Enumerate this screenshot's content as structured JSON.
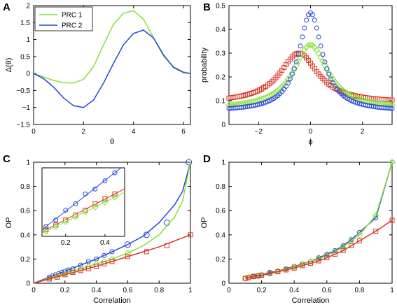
{
  "chart_data": [
    {
      "panel": "A",
      "type": "line",
      "xlabel": "θ",
      "ylabel": "Δ(θ)",
      "xlim": [
        0,
        6.28
      ],
      "ylim": [
        -1.5,
        2
      ],
      "xticks": [
        0,
        2,
        4,
        6
      ],
      "yticks": [
        -1.5,
        -1,
        -0.5,
        0,
        0.5,
        1,
        1.5,
        2
      ],
      "legend": "top-left",
      "series": [
        {
          "name": "PRC 1",
          "color": "#88e03a",
          "x": [
            0,
            0.4,
            0.8,
            1.2,
            1.6,
            2.0,
            2.4,
            2.8,
            3.2,
            3.6,
            4.0,
            4.4,
            4.8,
            5.2,
            5.6,
            6.0,
            6.28
          ],
          "y": [
            0,
            -0.1,
            -0.2,
            -0.27,
            -0.28,
            -0.17,
            0.2,
            0.85,
            1.45,
            1.78,
            1.85,
            1.6,
            1.05,
            0.52,
            0.2,
            0.05,
            0
          ]
        },
        {
          "name": "PRC 2",
          "color": "#2244dd",
          "x": [
            0,
            0.4,
            0.8,
            1.2,
            1.6,
            2.0,
            2.4,
            2.8,
            3.2,
            3.6,
            4.0,
            4.4,
            4.8,
            5.2,
            5.6,
            6.0,
            6.28
          ],
          "y": [
            0,
            -0.15,
            -0.4,
            -0.72,
            -0.95,
            -1.0,
            -0.78,
            -0.28,
            0.3,
            0.85,
            1.18,
            1.28,
            1.05,
            0.55,
            0.18,
            0.03,
            0
          ]
        }
      ]
    },
    {
      "panel": "B",
      "type": "scatter",
      "xlabel": "ϕ",
      "ylabel": "probability",
      "xlim": [
        -3.14,
        3.14
      ],
      "ylim": [
        0,
        0.5
      ],
      "xticks": [
        -2,
        0,
        2
      ],
      "yticks": [
        0,
        0.1,
        0.2,
        0.3,
        0.4,
        0.5
      ],
      "series": [
        {
          "marker": "circle",
          "color": "#2244dd",
          "peak_x": 0.0,
          "peak_y": 0.47,
          "base_y": 0.055,
          "width": 0.55
        },
        {
          "marker": "diamond",
          "color": "#88e03a",
          "peak_x": 0.0,
          "peak_y": 0.335,
          "base_y": 0.065,
          "width": 0.8
        },
        {
          "marker": "square",
          "color": "#dd3322",
          "peak_x": -0.45,
          "peak_y": 0.3,
          "base_y": 0.09,
          "width": 0.9
        }
      ]
    },
    {
      "panel": "C",
      "type": "line",
      "xlabel": "Correlation",
      "ylabel": "OP",
      "xlim": [
        0,
        1
      ],
      "ylim": [
        0,
        1
      ],
      "xticks": [
        0,
        0.2,
        0.4,
        0.6,
        0.8,
        1
      ],
      "yticks": [
        0,
        0.2,
        0.4,
        0.6,
        0.8,
        1
      ],
      "series": [
        {
          "color": "#2244dd",
          "marker": "circle",
          "x": [
            0,
            0.1,
            0.2,
            0.3,
            0.4,
            0.5,
            0.6,
            0.7,
            0.8,
            0.9,
            0.95,
            1.0
          ],
          "y": [
            0,
            0.05,
            0.1,
            0.15,
            0.2,
            0.26,
            0.32,
            0.39,
            0.5,
            0.65,
            0.76,
            1.0
          ],
          "points_x": [
            0.1,
            0.12,
            0.14,
            0.16,
            0.18,
            0.2,
            0.22,
            0.25,
            0.3,
            0.35,
            0.4,
            0.45,
            0.5,
            0.6,
            0.72,
            0.85,
            0.99
          ],
          "points_y": [
            0.05,
            0.06,
            0.07,
            0.08,
            0.09,
            0.1,
            0.11,
            0.12,
            0.15,
            0.18,
            0.2,
            0.23,
            0.26,
            0.32,
            0.4,
            0.5,
            1.0
          ]
        },
        {
          "color": "#88e03a",
          "marker": "diamond",
          "x": [
            0,
            0.1,
            0.2,
            0.3,
            0.4,
            0.5,
            0.6,
            0.7,
            0.8,
            0.9,
            0.95,
            1.0
          ],
          "y": [
            0,
            0.04,
            0.08,
            0.12,
            0.16,
            0.2,
            0.25,
            0.31,
            0.4,
            0.55,
            0.68,
            1.0
          ],
          "points_x": [
            0.1,
            0.15,
            0.2,
            0.25,
            0.3,
            0.35,
            0.4,
            0.45,
            0.5,
            0.6
          ],
          "points_y": [
            0.04,
            0.06,
            0.08,
            0.1,
            0.12,
            0.14,
            0.16,
            0.18,
            0.2,
            0.25
          ]
        },
        {
          "color": "#dd3322",
          "marker": "square",
          "x": [
            0,
            0.2,
            0.4,
            0.6,
            0.8,
            1.0
          ],
          "y": [
            0,
            0.07,
            0.14,
            0.22,
            0.3,
            0.4
          ],
          "points_x": [
            0.1,
            0.15,
            0.2,
            0.25,
            0.3,
            0.35,
            0.4,
            0.45,
            0.5,
            0.6,
            0.72,
            0.85,
            1.0
          ],
          "points_y": [
            0.035,
            0.05,
            0.07,
            0.09,
            0.105,
            0.12,
            0.14,
            0.16,
            0.18,
            0.22,
            0.26,
            0.31,
            0.4
          ]
        }
      ],
      "inset": {
        "xlim": [
          0.08,
          0.5
        ],
        "ylim": [
          0.02,
          0.23
        ],
        "xticks": [
          0.2,
          0.4
        ],
        "series": [
          {
            "color": "#2244dd",
            "marker": "circle",
            "x": [
              0.1,
              0.15,
              0.2,
              0.25,
              0.3,
              0.35,
              0.4,
              0.45
            ],
            "y": [
              0.05,
              0.07,
              0.1,
              0.12,
              0.15,
              0.165,
              0.19,
              0.215
            ]
          },
          {
            "color": "#dd3322",
            "marker": "square",
            "x": [
              0.1,
              0.15,
              0.2,
              0.25,
              0.3,
              0.35,
              0.4,
              0.45
            ],
            "y": [
              0.04,
              0.055,
              0.07,
              0.085,
              0.1,
              0.12,
              0.135,
              0.15
            ]
          },
          {
            "color": "#88e03a",
            "marker": "diamond",
            "x": [
              0.1,
              0.15,
              0.2,
              0.25,
              0.3,
              0.35,
              0.4,
              0.45
            ],
            "y": [
              0.035,
              0.05,
              0.065,
              0.08,
              0.095,
              0.11,
              0.125,
              0.14
            ]
          }
        ]
      }
    },
    {
      "panel": "D",
      "type": "line",
      "xlabel": "Correlation",
      "ylabel": "OP",
      "xlim": [
        0,
        1
      ],
      "ylim": [
        0,
        1
      ],
      "xticks": [
        0,
        0.2,
        0.4,
        0.6,
        0.8,
        1
      ],
      "yticks": [
        0,
        0.2,
        0.4,
        0.6,
        0.8,
        1
      ],
      "series": [
        {
          "color": "#2244dd",
          "marker": "circle",
          "x": [
            0.1,
            0.12,
            0.15,
            0.18,
            0.2,
            0.25,
            0.3,
            0.35,
            0.4,
            0.45,
            0.5,
            0.55,
            0.6,
            0.65,
            0.7,
            0.75,
            0.8,
            0.9,
            1.0
          ],
          "y": [
            0.04,
            0.05,
            0.06,
            0.065,
            0.07,
            0.09,
            0.1,
            0.12,
            0.14,
            0.16,
            0.18,
            0.21,
            0.24,
            0.27,
            0.31,
            0.36,
            0.42,
            0.54,
            1.0
          ]
        },
        {
          "color": "#88e03a",
          "marker": "diamond",
          "x": [
            0.1,
            0.12,
            0.15,
            0.18,
            0.2,
            0.25,
            0.3,
            0.35,
            0.4,
            0.45,
            0.5,
            0.55,
            0.6,
            0.65,
            0.7,
            0.75,
            0.8,
            0.9,
            1.0
          ],
          "y": [
            0.04,
            0.05,
            0.055,
            0.06,
            0.07,
            0.08,
            0.1,
            0.115,
            0.135,
            0.155,
            0.18,
            0.2,
            0.23,
            0.26,
            0.3,
            0.35,
            0.4,
            0.56,
            1.0
          ]
        },
        {
          "color": "#dd3322",
          "marker": "square",
          "x": [
            0.1,
            0.12,
            0.15,
            0.18,
            0.2,
            0.25,
            0.3,
            0.35,
            0.4,
            0.45,
            0.5,
            0.55,
            0.6,
            0.65,
            0.7,
            0.75,
            0.8,
            0.9,
            1.0
          ],
          "y": [
            0.04,
            0.045,
            0.055,
            0.06,
            0.065,
            0.08,
            0.095,
            0.11,
            0.125,
            0.145,
            0.165,
            0.185,
            0.21,
            0.24,
            0.27,
            0.31,
            0.35,
            0.43,
            0.52
          ]
        }
      ]
    }
  ]
}
